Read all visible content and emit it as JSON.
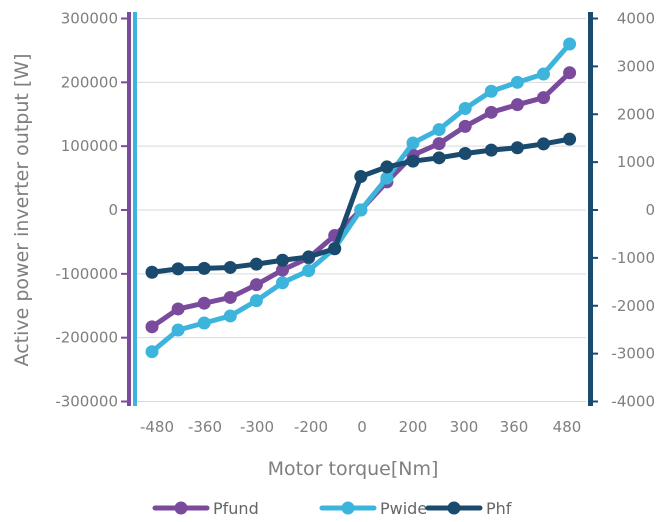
{
  "chart_data": {
    "type": "line",
    "xlabel": "Motor torque[Nm]",
    "ylabel": "Active power inverter output [W]",
    "x_tick_labels": [
      "-480",
      "-360",
      "-300",
      "-200",
      "0",
      "200",
      "300",
      "360",
      "480"
    ],
    "x": [
      -480,
      -420,
      -360,
      -300,
      -240,
      -180,
      -120,
      -60,
      0,
      60,
      120,
      180,
      240,
      300,
      360,
      420,
      480
    ],
    "ylim_left": [
      -300000,
      300000
    ],
    "yticks_left": [
      -300000,
      -200000,
      -100000,
      0,
      100000,
      200000,
      300000
    ],
    "ylim_right": [
      -4000,
      4000
    ],
    "yticks_right": [
      -4000,
      -3000,
      -2000,
      -1000,
      0,
      1000,
      2000,
      3000,
      4000
    ],
    "grid": true,
    "legend_position": "bottom",
    "series": [
      {
        "name": "Pfund",
        "axis": "left",
        "color": "#7a4a9c",
        "values": [
          -183000,
          -155000,
          -146000,
          -137000,
          -117000,
          -94000,
          -75000,
          -40000,
          0,
          44000,
          86000,
          104000,
          131000,
          153000,
          165000,
          176000,
          215000
        ]
      },
      {
        "name": "Pwide",
        "axis": "left",
        "color": "#3cb4dc",
        "values": [
          -222000,
          -188000,
          -177000,
          -166000,
          -142000,
          -114000,
          -95000,
          -60000,
          0,
          50000,
          105000,
          126000,
          159000,
          186000,
          200000,
          213000,
          260000
        ]
      },
      {
        "name": "Phf",
        "axis": "right",
        "color": "#1a4a6e",
        "values": [
          -1300,
          -1230,
          -1220,
          -1200,
          -1130,
          -1050,
          -980,
          -810,
          700,
          900,
          1020,
          1090,
          1180,
          1250,
          1300,
          1380,
          1480
        ]
      }
    ]
  }
}
